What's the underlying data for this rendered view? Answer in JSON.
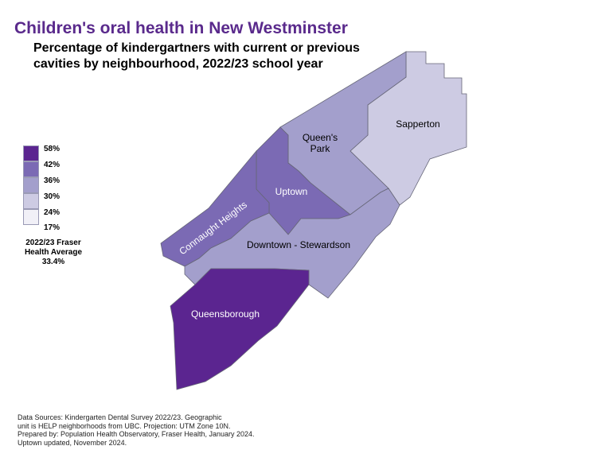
{
  "title": "Children's oral health in New Westminster",
  "subtitle": {
    "line1": "Percentage of kindergartners with current or previous",
    "line2": "cavities by neighbourhood, 2022/23 school year"
  },
  "legend": {
    "bins": [
      {
        "label": "58%",
        "color": "#5b2590"
      },
      {
        "label": "42%",
        "color": "#7b6ab4"
      },
      {
        "label": "36%",
        "color": "#a39fcc"
      },
      {
        "label": "30%",
        "color": "#cdcbe3"
      },
      {
        "label": "24%",
        "color": "#f1f0f7"
      }
    ],
    "bottom_label": "17%"
  },
  "fraser_health_average": {
    "line1": "2022/23 Fraser",
    "line2": "Health Average",
    "line3": "33.4%"
  },
  "neighbourhoods": {
    "sapperton": {
      "name": "Sapperton",
      "fill": "#cdcbe3"
    },
    "queens_park": {
      "name_line1": "Queen's",
      "name_line2": "Park",
      "fill": "#a39fcc"
    },
    "uptown": {
      "name": "Uptown",
      "fill": "#7b6ab4"
    },
    "connaught_heights": {
      "name": "Connaught Heights",
      "fill": "#7b6ab4"
    },
    "downtown_stewardson": {
      "name": "Downtown - Stewardson",
      "fill": "#a39fcc"
    },
    "queensborough": {
      "name": "Queensborough",
      "fill": "#5b2590"
    }
  },
  "sources": {
    "line1": "Data Sources: Kindergarten Dental Survey 2022/23. Geographic",
    "line2": "unit is HELP neighborhoods from UBC. Projection: UTM Zone 10N.",
    "line3": "Prepared by: Population Health Observatory, Fraser Health, January 2024.",
    "line4": "Uptown updated, November 2024."
  }
}
